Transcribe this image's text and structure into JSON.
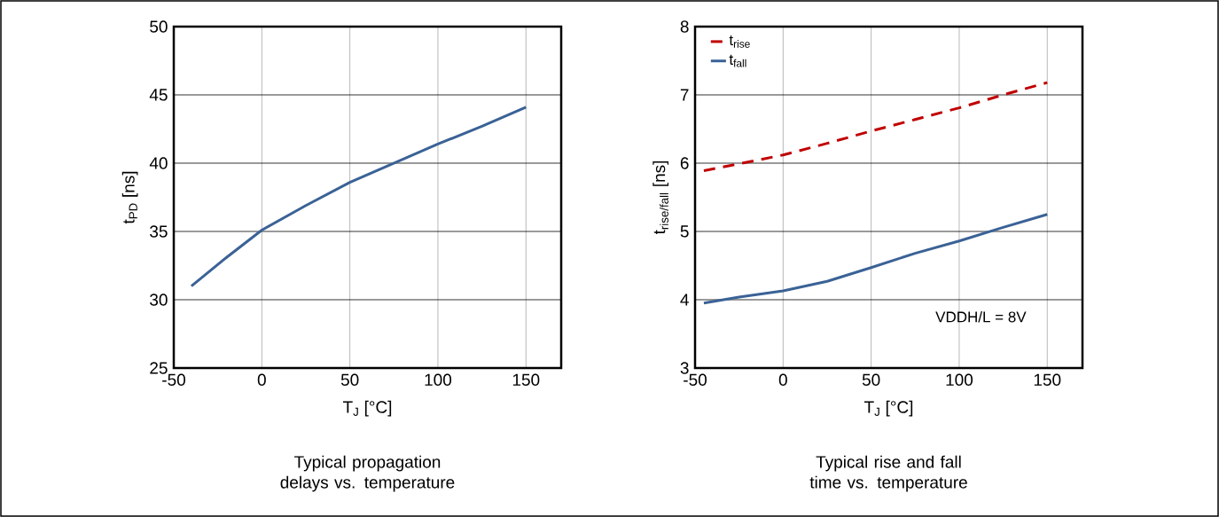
{
  "chart_data": [
    {
      "type": "line",
      "title": "Typical propagation delays vs. temperature",
      "xlabel": "T$_{J}$ [°C]",
      "ylabel": "t$_{PD}$ [ns]",
      "xlim": [
        -50,
        170
      ],
      "xticks": [
        -50,
        0,
        50,
        100,
        150
      ],
      "ylim": [
        25,
        50
      ],
      "yticks": [
        25,
        30,
        35,
        40,
        45,
        50
      ],
      "grid": true,
      "series": [
        {
          "color": "#3a6296",
          "line_style": "solid",
          "x": [
            -40,
            -20,
            0,
            25,
            50,
            75,
            100,
            125,
            150
          ],
          "values": [
            31.0,
            33.1,
            35.1,
            36.9,
            38.6,
            40.0,
            41.4,
            42.7,
            44.1
          ]
        }
      ]
    },
    {
      "type": "line",
      "title": "Typical rise and fall time vs. temperature",
      "xlabel": "T$_{J}$ [°C]",
      "ylabel": "t$_{rise/fall}$ [ns]",
      "xlim": [
        -50,
        170
      ],
      "xticks": [
        -50,
        0,
        50,
        100,
        150
      ],
      "ylim": [
        3,
        8
      ],
      "yticks": [
        3,
        4,
        5,
        6,
        7,
        8
      ],
      "grid": true,
      "legend": "top left",
      "annotations": [
        "VDDH/L = 8V"
      ],
      "series": [
        {
          "name": "t$_{rise}$",
          "color": "#c00000",
          "line_style": "dashed",
          "x": [
            -45,
            -25,
            0,
            25,
            50,
            75,
            100,
            125,
            150
          ],
          "values": [
            5.89,
            5.99,
            6.12,
            6.29,
            6.47,
            6.64,
            6.81,
            7.0,
            7.18
          ]
        },
        {
          "name": "t$_{fall}$",
          "color": "#3a6296",
          "line_style": "solid",
          "x": [
            -45,
            -25,
            0,
            25,
            50,
            75,
            100,
            125,
            150
          ],
          "values": [
            3.95,
            4.04,
            4.13,
            4.27,
            4.47,
            4.68,
            4.86,
            5.06,
            5.25
          ]
        }
      ]
    }
  ]
}
